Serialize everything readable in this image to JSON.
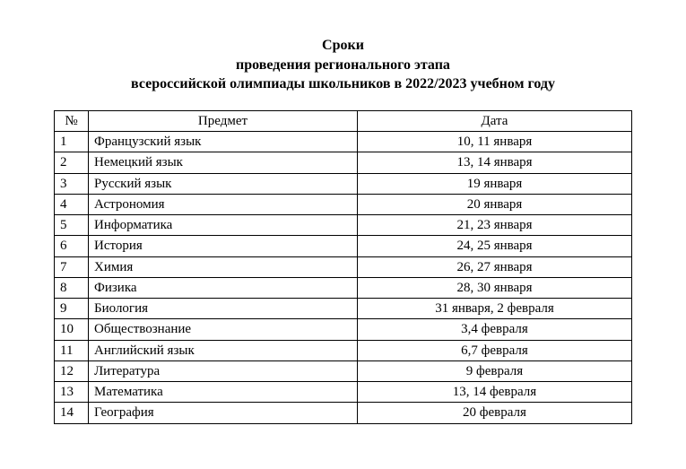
{
  "title": {
    "line1": "Сроки",
    "line2": "проведения регионального этапа",
    "line3": "всероссийской олимпиады школьников в 2022/2023 учебном году"
  },
  "table": {
    "headers": {
      "num": "№",
      "subject": "Предмет",
      "date": "Дата"
    },
    "rows": [
      {
        "num": "1",
        "subject": "Французский язык",
        "date": "10, 11 января"
      },
      {
        "num": "2",
        "subject": "Немецкий язык",
        "date": "13, 14 января"
      },
      {
        "num": "3",
        "subject": "Русский язык",
        "date": "19 января"
      },
      {
        "num": "4",
        "subject": "Астрономия",
        "date": "20 января"
      },
      {
        "num": "5",
        "subject": "Информатика",
        "date": "21, 23 января"
      },
      {
        "num": "6",
        "subject": "История",
        "date": "24, 25 января"
      },
      {
        "num": "7",
        "subject": "Химия",
        "date": "26, 27 января"
      },
      {
        "num": "8",
        "subject": "Физика",
        "date": "28, 30 января"
      },
      {
        "num": "9",
        "subject": "Биология",
        "date": "31 января, 2 февраля"
      },
      {
        "num": "10",
        "subject": "Обществознание",
        "date": "3,4 февраля"
      },
      {
        "num": "11",
        "subject": "Английский язык",
        "date": "6,7 февраля"
      },
      {
        "num": "12",
        "subject": "Литература",
        "date": "9 февраля"
      },
      {
        "num": "13",
        "subject": "Математика",
        "date": "13, 14 февраля"
      },
      {
        "num": "14",
        "subject": "География",
        "date": "20 февраля"
      }
    ]
  }
}
